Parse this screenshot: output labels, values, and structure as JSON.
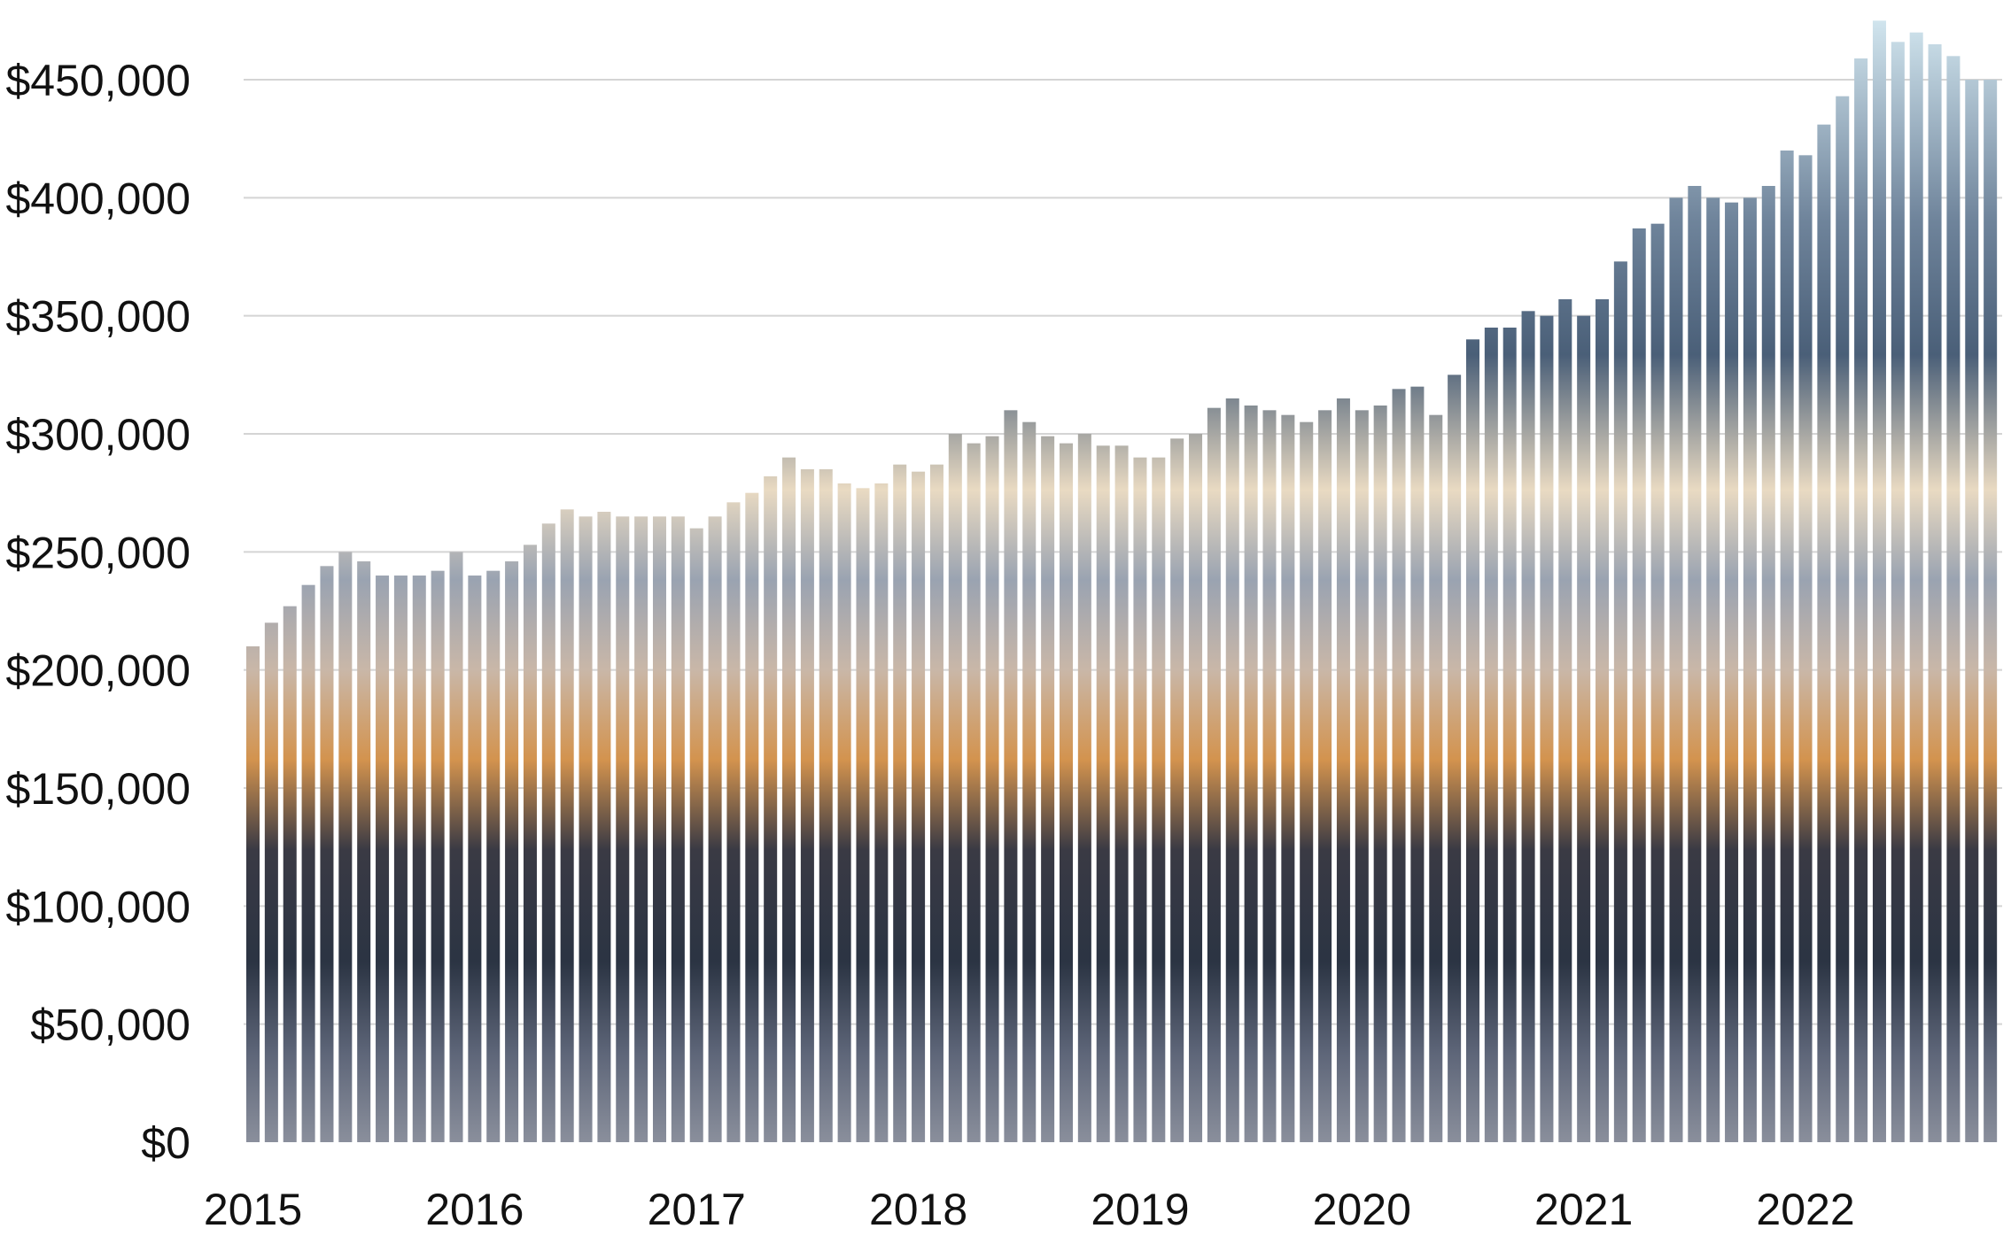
{
  "chart_data": {
    "type": "bar",
    "title": "",
    "xlabel": "",
    "ylabel": "",
    "ylim": [
      0,
      450000
    ],
    "grid": true,
    "y_ticks": [
      0,
      50000,
      100000,
      150000,
      200000,
      250000,
      300000,
      350000,
      400000,
      450000
    ],
    "y_tick_labels": [
      "$0",
      "$50,000",
      "$100,000",
      "$150,000",
      "$200,000",
      "$250,000",
      "$300,000",
      "$350,000",
      "$400,000",
      "$450,000"
    ],
    "x_tick_labels": [
      "2015",
      "2016",
      "2017",
      "2018",
      "2019",
      "2020",
      "2021",
      "2022"
    ],
    "period": "monthly",
    "start_year": 2015,
    "values": [
      210000,
      220000,
      227000,
      236000,
      244000,
      250000,
      246000,
      240000,
      240000,
      240000,
      242000,
      250000,
      240000,
      242000,
      246000,
      253000,
      262000,
      268000,
      265000,
      267000,
      265000,
      265000,
      265000,
      265000,
      260000,
      265000,
      271000,
      275000,
      282000,
      290000,
      285000,
      285000,
      279000,
      277000,
      279000,
      287000,
      284000,
      287000,
      300000,
      296000,
      299000,
      310000,
      305000,
      299000,
      296000,
      300000,
      295000,
      295000,
      290000,
      290000,
      298000,
      300000,
      311000,
      315000,
      312000,
      310000,
      308000,
      305000,
      310000,
      315000,
      310000,
      312000,
      319000,
      320000,
      308000,
      325000,
      340000,
      345000,
      345000,
      352000,
      350000,
      357000,
      350000,
      357000,
      373000,
      387000,
      389000,
      400000,
      405000,
      400000,
      398000,
      400000,
      405000,
      420000,
      418000,
      431000,
      443000,
      459000,
      475000,
      466000,
      470000,
      465000,
      460000,
      450000,
      450000
    ],
    "series_note_colors": {
      "sky_top": "#c9dfe9",
      "sky_mid": "#5e7188",
      "sky_dusk": "#f2d9b8",
      "city_glow": "#e7a24e",
      "city_dark": "#2c3442",
      "water": "#2ea8d4",
      "gridline": "#d4d4d4"
    }
  }
}
